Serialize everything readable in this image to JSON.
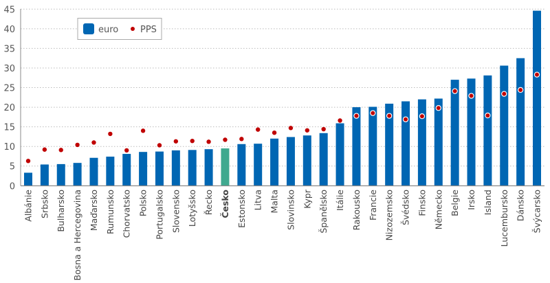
{
  "chart_data": {
    "type": "bar",
    "title": "",
    "xlabel": "",
    "ylabel": "",
    "ylim": [
      0,
      45
    ],
    "yticks": [
      0,
      5,
      10,
      15,
      20,
      25,
      30,
      35,
      40,
      45
    ],
    "grid": true,
    "legend_position": "top-left",
    "highlight_category": "Česko",
    "colors": {
      "euro": "#0066b3",
      "highlight": "#3fa98f",
      "PPS": "#c00000"
    },
    "categories": [
      "Albánie",
      "Srbsko",
      "Bulharsko",
      "Bosna a Hercegovina",
      "Maďarsko",
      "Rumunsko",
      "Chorvatsko",
      "Polsko",
      "Portugalsko",
      "Slovensko",
      "Lotyšsko",
      "Řecko",
      "Česko",
      "Estonsko",
      "Litva",
      "Malta",
      "Slovinsko",
      "Kypr",
      "Španělsko",
      "Itálie",
      "Rakousko",
      "Francie",
      "Nizozemsko",
      "Švédsko",
      "Finsko",
      "Německo",
      "Belgie",
      "Irsko",
      "Island",
      "Lucembursko",
      "Dánsko",
      "Švýcarsko"
    ],
    "series": [
      {
        "name": "euro",
        "type": "bar",
        "values": [
          3.3,
          5.4,
          5.5,
          5.8,
          7.1,
          7.4,
          8.1,
          8.6,
          8.7,
          9.0,
          9.1,
          9.3,
          9.5,
          10.6,
          10.7,
          12.0,
          12.4,
          12.8,
          13.4,
          15.9,
          20.0,
          20.1,
          20.9,
          21.5,
          22.0,
          22.2,
          27.0,
          27.3,
          28.1,
          30.6,
          32.5,
          44.6
        ]
      },
      {
        "name": "PPS",
        "type": "scatter",
        "values": [
          6.3,
          9.2,
          9.1,
          10.4,
          11.0,
          13.2,
          9.0,
          14.0,
          10.3,
          11.3,
          11.4,
          11.2,
          11.7,
          11.9,
          14.3,
          13.5,
          14.7,
          14.1,
          14.4,
          16.6,
          17.8,
          18.5,
          17.8,
          16.9,
          17.7,
          19.8,
          24.1,
          22.9,
          17.9,
          23.4,
          24.4,
          28.3
        ]
      }
    ]
  }
}
